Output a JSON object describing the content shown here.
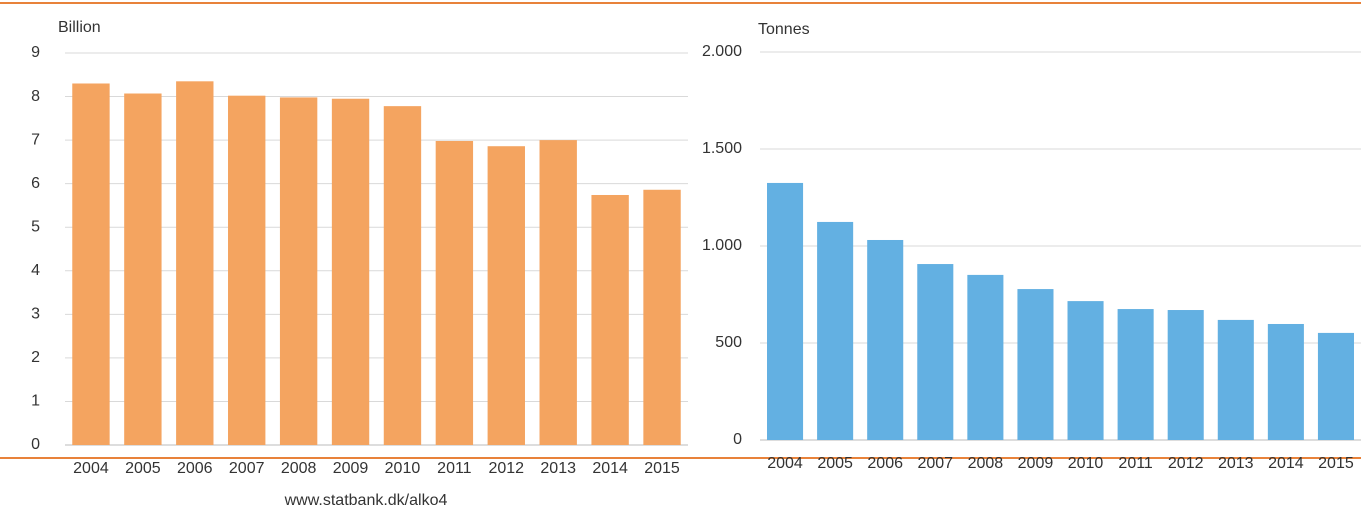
{
  "chart_data": [
    {
      "type": "bar",
      "y_label": "Billion",
      "categories": [
        "2004",
        "2005",
        "2006",
        "2007",
        "2008",
        "2009",
        "2010",
        "2011",
        "2012",
        "2013",
        "2014",
        "2015"
      ],
      "values": [
        8.3,
        8.07,
        8.35,
        8.02,
        7.98,
        7.95,
        7.78,
        6.98,
        6.86,
        7.0,
        5.74,
        5.86
      ],
      "color": "#f4a460",
      "ylim": [
        0,
        9
      ],
      "yticks": [
        0,
        1,
        2,
        3,
        4,
        5,
        6,
        7,
        8,
        9
      ],
      "grid": true
    },
    {
      "type": "bar",
      "y_label": "Tonnes",
      "categories": [
        "2004",
        "2005",
        "2006",
        "2007",
        "2008",
        "2009",
        "2010",
        "2011",
        "2012",
        "2013",
        "2014",
        "2015"
      ],
      "values": [
        1325,
        1124,
        1031,
        907,
        851,
        778,
        716,
        675,
        670,
        619,
        598,
        552
      ],
      "color": "#63b0e2",
      "ylim": [
        0,
        2000
      ],
      "yticks": [
        0,
        500,
        {
          "value": 1000,
          "label": "1.000"
        },
        {
          "value": 1500,
          "label": "1.500"
        },
        {
          "value": 2000,
          "label": "2.000"
        }
      ],
      "grid": true
    }
  ],
  "source": "www.statbank.dk/alko4"
}
